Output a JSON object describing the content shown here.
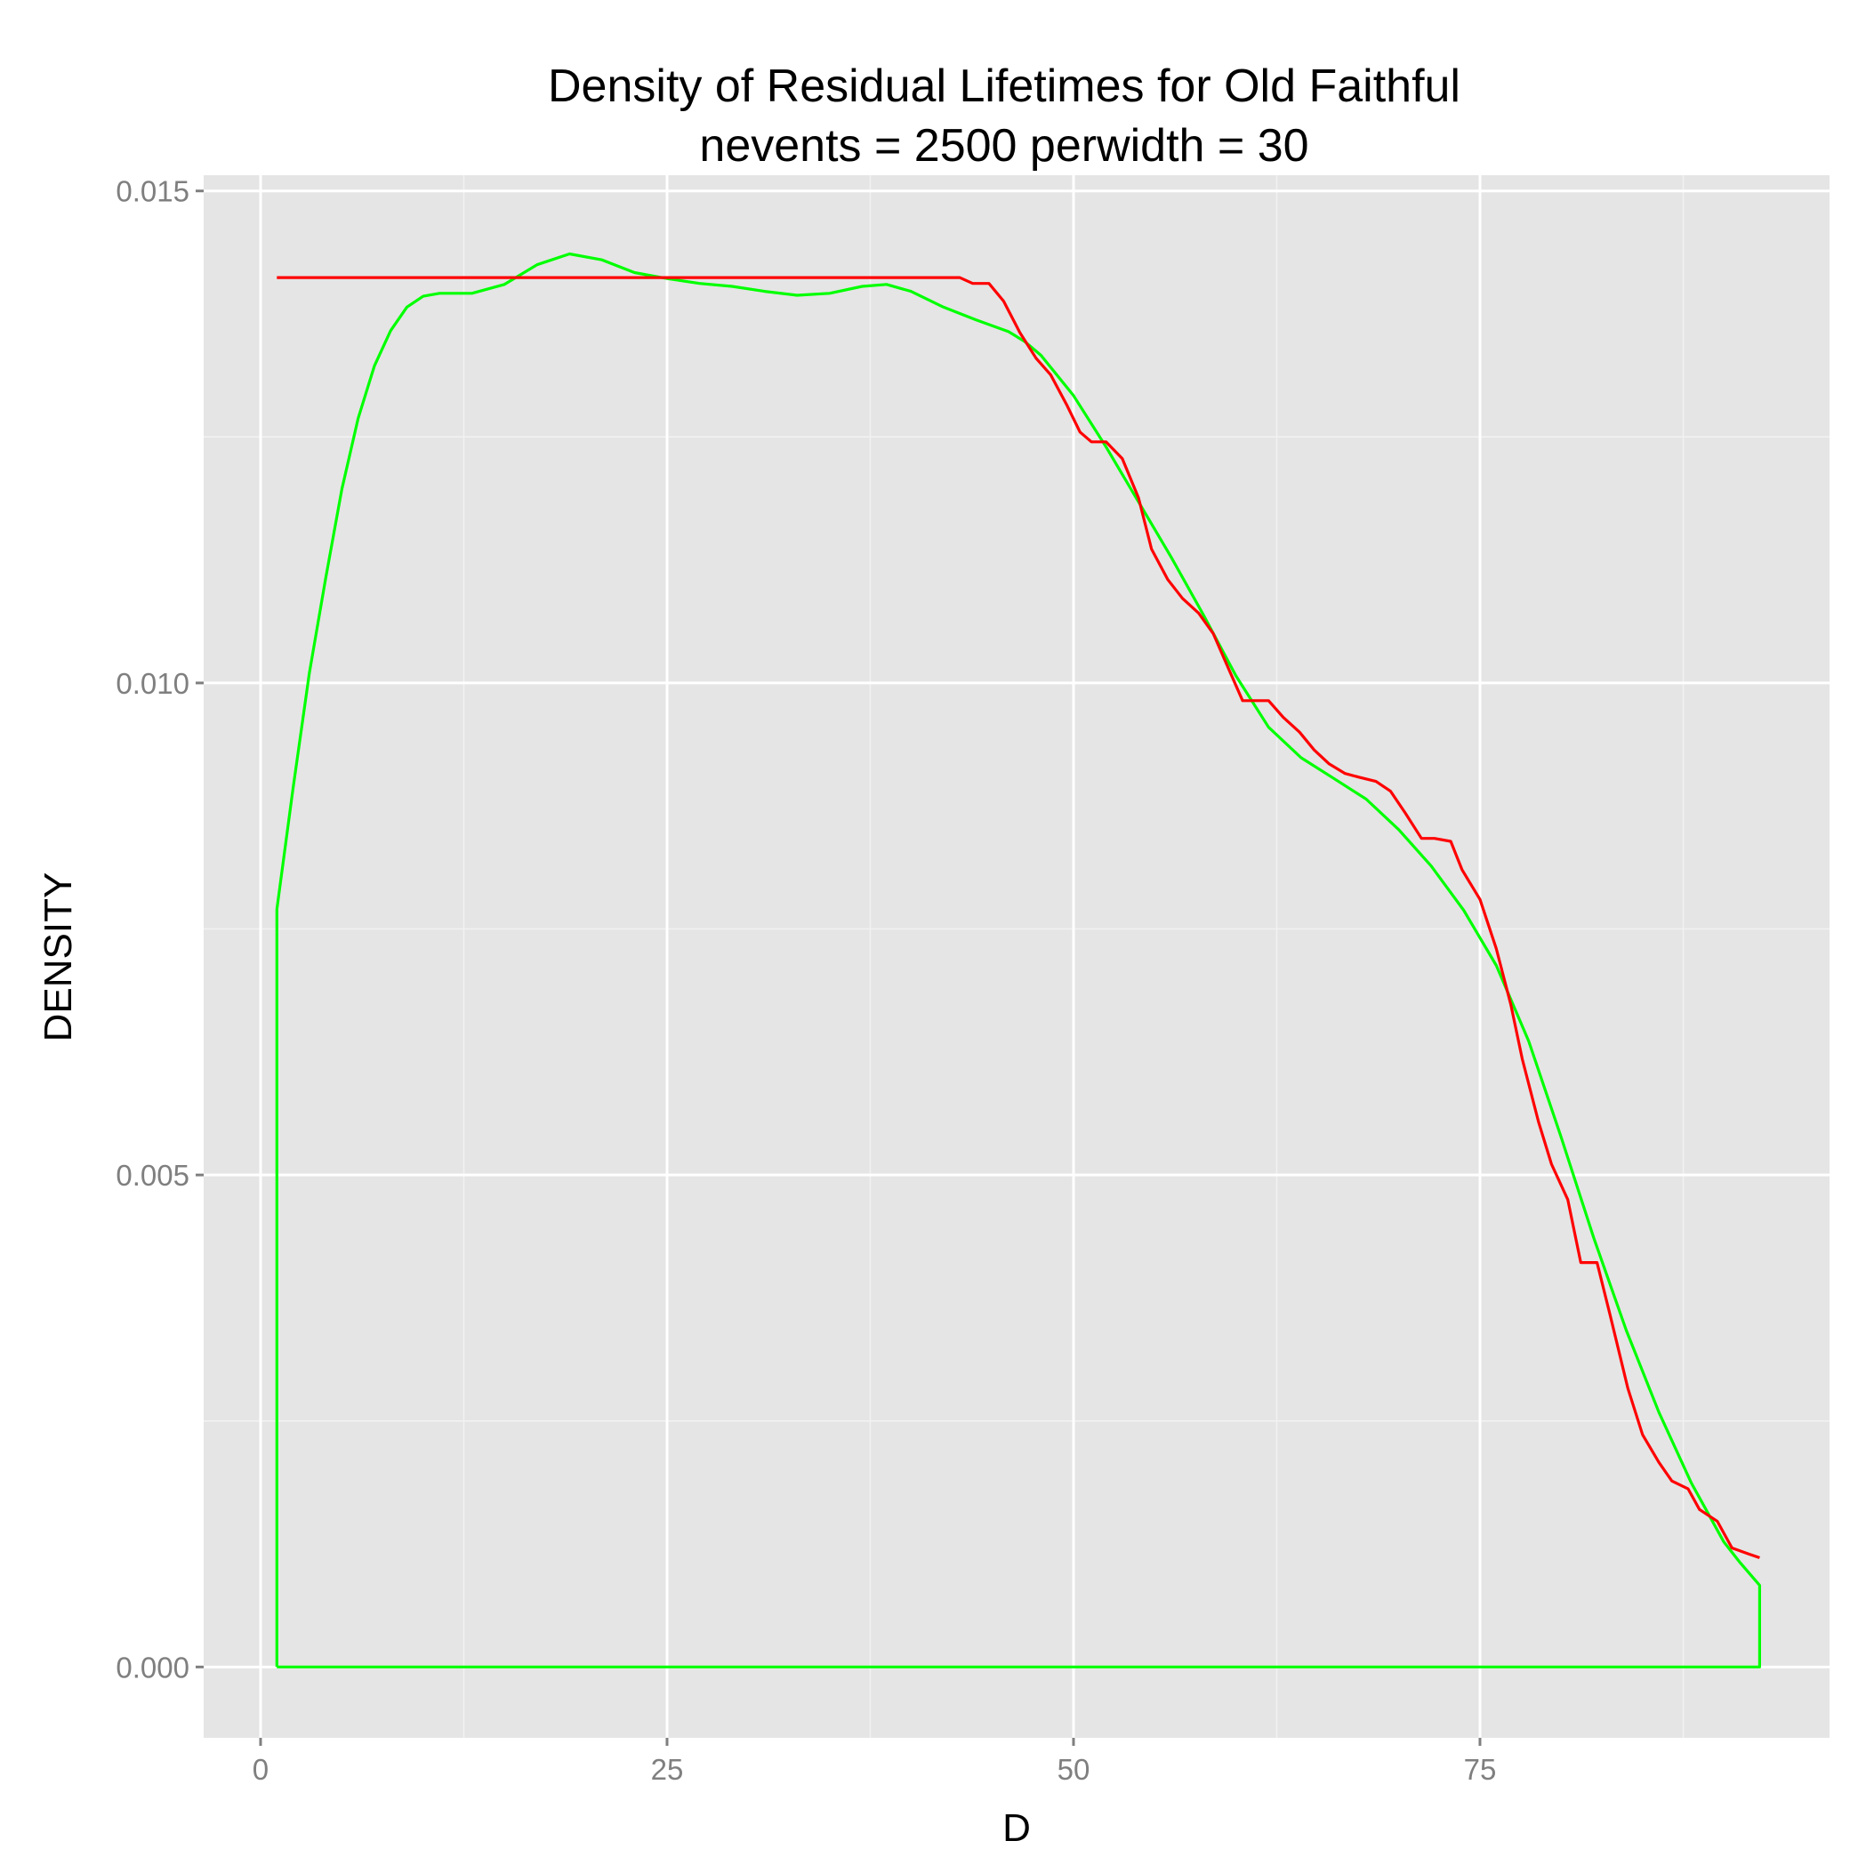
{
  "chart_data": {
    "type": "line",
    "title": "Density of Residual Lifetimes for Old Faithful",
    "subtitle": "nevents = 2500 perwidth = 30",
    "xlabel": "D",
    "ylabel": "DENSITY",
    "xlim": [
      -3.5,
      96.5
    ],
    "ylim": [
      -0.00072,
      0.01516
    ],
    "x_ticks": [
      0,
      25,
      50,
      75
    ],
    "x_tick_labels": [
      "0",
      "25",
      "50",
      "75"
    ],
    "y_ticks": [
      0.0,
      0.005,
      0.01,
      0.015
    ],
    "y_tick_labels": [
      "0.000",
      "0.005",
      "0.010",
      "0.015"
    ],
    "grid": true,
    "legend": "none",
    "series": [
      {
        "color": "#ff0000",
        "points": [
          [
            1,
            0.01412
          ],
          [
            10,
            0.01412
          ],
          [
            20,
            0.01412
          ],
          [
            30,
            0.01412
          ],
          [
            40,
            0.01412
          ],
          [
            43,
            0.01412
          ],
          [
            43.8,
            0.01406
          ],
          [
            44.8,
            0.01406
          ],
          [
            45.7,
            0.01388
          ],
          [
            46.7,
            0.01356
          ],
          [
            47.7,
            0.0133
          ],
          [
            48.6,
            0.01313
          ],
          [
            49.6,
            0.01282
          ],
          [
            50.4,
            0.01255
          ],
          [
            51.1,
            0.01245
          ],
          [
            52,
            0.01245
          ],
          [
            53,
            0.01228
          ],
          [
            54,
            0.01188
          ],
          [
            54.8,
            0.01136
          ],
          [
            55.8,
            0.01105
          ],
          [
            56.7,
            0.01086
          ],
          [
            57.7,
            0.01071
          ],
          [
            58.6,
            0.0105
          ],
          [
            59.6,
            0.01012
          ],
          [
            60.4,
            0.00982
          ],
          [
            61.2,
            0.00982
          ],
          [
            62,
            0.00982
          ],
          [
            62.9,
            0.00965
          ],
          [
            63.9,
            0.0095
          ],
          [
            64.8,
            0.00932
          ],
          [
            65.7,
            0.00918
          ],
          [
            66.7,
            0.00908
          ],
          [
            67.6,
            0.00904
          ],
          [
            68.6,
            0.009
          ],
          [
            69.5,
            0.0089
          ],
          [
            70.4,
            0.00868
          ],
          [
            71.4,
            0.00842
          ],
          [
            72.2,
            0.00842
          ],
          [
            73.2,
            0.00839
          ],
          [
            73.9,
            0.0081
          ],
          [
            75.0,
            0.0078
          ],
          [
            76.0,
            0.0073
          ],
          [
            76.9,
            0.00673
          ],
          [
            77.6,
            0.00618
          ],
          [
            78.6,
            0.00554
          ],
          [
            79.4,
            0.00511
          ],
          [
            80.4,
            0.00475
          ],
          [
            81.2,
            0.00411
          ],
          [
            82.2,
            0.00411
          ],
          [
            83.0,
            0.00358
          ],
          [
            84.1,
            0.00283
          ],
          [
            85.0,
            0.00236
          ],
          [
            86.0,
            0.00208
          ],
          [
            86.8,
            0.00189
          ],
          [
            87.8,
            0.00181
          ],
          [
            88.5,
            0.0016
          ],
          [
            89.6,
            0.00148
          ],
          [
            90.5,
            0.00121
          ],
          [
            91.5,
            0.00115
          ],
          [
            92.2,
            0.00111
          ]
        ]
      },
      {
        "color": "#00ff00",
        "points": [
          [
            1,
            0.0
          ],
          [
            1,
            0.0077
          ],
          [
            2,
            0.00893
          ],
          [
            3,
            0.0101
          ],
          [
            4,
            0.01106
          ],
          [
            5,
            0.01197
          ],
          [
            6,
            0.01269
          ],
          [
            7,
            0.01322
          ],
          [
            8,
            0.01358
          ],
          [
            9,
            0.01382
          ],
          [
            10,
            0.01393
          ],
          [
            11,
            0.01396
          ],
          [
            13,
            0.01396
          ],
          [
            15,
            0.01405
          ],
          [
            17,
            0.01425
          ],
          [
            19,
            0.01436
          ],
          [
            21,
            0.0143
          ],
          [
            23,
            0.01417
          ],
          [
            25,
            0.01411
          ],
          [
            27,
            0.01406
          ],
          [
            29,
            0.01403
          ],
          [
            31,
            0.01398
          ],
          [
            33,
            0.01394
          ],
          [
            35,
            0.01396
          ],
          [
            37,
            0.01403
          ],
          [
            38.5,
            0.01405
          ],
          [
            40,
            0.01398
          ],
          [
            42,
            0.01382
          ],
          [
            44,
            0.01369
          ],
          [
            46,
            0.01357
          ],
          [
            47,
            0.01347
          ],
          [
            48,
            0.01333
          ],
          [
            50,
            0.01292
          ],
          [
            52,
            0.0124
          ],
          [
            54,
            0.01184
          ],
          [
            56,
            0.01128
          ],
          [
            58,
            0.01069
          ],
          [
            60,
            0.01007
          ],
          [
            62,
            0.00955
          ],
          [
            64,
            0.00924
          ],
          [
            66,
            0.00903
          ],
          [
            68,
            0.00882
          ],
          [
            70,
            0.00851
          ],
          [
            72,
            0.00814
          ],
          [
            74,
            0.00769
          ],
          [
            76,
            0.00713
          ],
          [
            78,
            0.00636
          ],
          [
            80,
            0.00538
          ],
          [
            82,
            0.00436
          ],
          [
            84,
            0.00342
          ],
          [
            86,
            0.00259
          ],
          [
            88,
            0.00187
          ],
          [
            90,
            0.00127
          ],
          [
            91,
            0.00106
          ],
          [
            92.2,
            0.00083
          ],
          [
            92.2,
            0.0
          ],
          [
            1,
            0.0
          ]
        ]
      }
    ]
  }
}
